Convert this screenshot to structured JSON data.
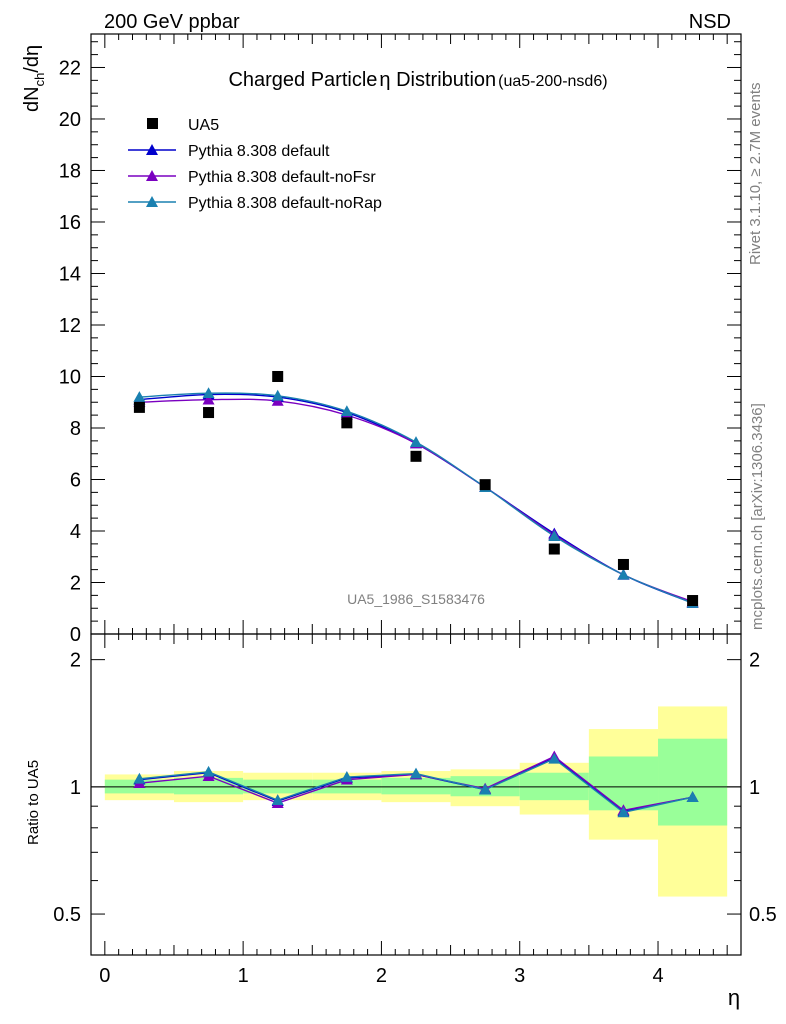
{
  "header": {
    "left": "200 GeV ppbar",
    "right": "NSD"
  },
  "side_text": {
    "rivet": "Rivet 3.1.10, ≥ 2.7M events",
    "mcplots": "mcplots.cern.ch [arXiv:1306.3436]"
  },
  "analysis_tag": "UA5_1986_S1583476",
  "chart_data": [
    {
      "type": "line",
      "panel": "main",
      "title": "Charged Particle",
      "title_symbol": "η",
      "title_rest": " Distribution",
      "title_suffix": "(ua5-200-nsd6)",
      "ylabel_main": "dN",
      "ylabel_sub": "ch",
      "ylabel_tail": "/dη",
      "xlabel": "η",
      "xlim": [
        -0.1,
        4.6
      ],
      "ylim": [
        0,
        23.3
      ],
      "yticks": [
        0,
        2,
        4,
        6,
        8,
        10,
        12,
        14,
        16,
        18,
        20,
        22
      ],
      "ytick_labels": [
        "0",
        "2",
        "4",
        "6",
        "8",
        "10",
        "12",
        "14",
        "16",
        "18",
        "20",
        "22"
      ],
      "legend_position": "top-left",
      "data_series": {
        "name": "UA5",
        "color": "#000000",
        "marker": "square",
        "x": [
          0.25,
          0.75,
          1.25,
          1.75,
          2.25,
          2.75,
          3.25,
          3.75,
          4.25
        ],
        "y": [
          8.8,
          8.6,
          10.0,
          8.2,
          6.9,
          5.8,
          3.3,
          2.7,
          1.3
        ]
      },
      "series": [
        {
          "name": "Pythia 8.308 default",
          "color": "#0000cc",
          "marker": "triangle",
          "x": [
            0.25,
            0.75,
            1.25,
            1.75,
            2.25,
            2.75,
            3.25,
            3.75,
            4.25
          ],
          "y": [
            9.1,
            9.3,
            9.2,
            8.6,
            7.4,
            5.7,
            3.9,
            2.3,
            1.2
          ]
        },
        {
          "name": "Pythia 8.308 default-noFsr",
          "color": "#7a00c0",
          "marker": "triangle",
          "x": [
            0.25,
            0.75,
            1.25,
            1.75,
            2.25,
            2.75,
            3.25,
            3.75,
            4.25
          ],
          "y": [
            9.0,
            9.1,
            9.05,
            8.5,
            7.4,
            5.7,
            3.85,
            2.3,
            1.25
          ]
        },
        {
          "name": "Pythia 8.308 default-noRap",
          "color": "#1a80b0",
          "marker": "triangle",
          "x": [
            0.25,
            0.75,
            1.25,
            1.75,
            2.25,
            2.75,
            3.25,
            3.75,
            4.25
          ],
          "y": [
            9.2,
            9.35,
            9.25,
            8.65,
            7.45,
            5.7,
            3.8,
            2.3,
            1.2
          ]
        }
      ]
    },
    {
      "type": "line",
      "panel": "ratio",
      "ylabel": "Ratio to UA5",
      "xlabel": "η",
      "xlim": [
        -0.1,
        4.6
      ],
      "ylim": [
        0.4,
        2.3
      ],
      "yscale": "log",
      "yticks": [
        0.5,
        1,
        2
      ],
      "ytick_labels": [
        "0.5",
        "1",
        "2"
      ],
      "xticks": [
        0,
        1,
        2,
        3,
        4
      ],
      "xtick_labels": [
        "0",
        "1",
        "2",
        "3",
        "4"
      ],
      "bands": [
        {
          "xlow": 0.0,
          "xhigh": 0.5,
          "yellow": [
            0.93,
            1.07
          ],
          "green": [
            0.965,
            1.04
          ]
        },
        {
          "xlow": 0.5,
          "xhigh": 1.0,
          "yellow": [
            0.92,
            1.09
          ],
          "green": [
            0.96,
            1.05
          ]
        },
        {
          "xlow": 1.0,
          "xhigh": 1.5,
          "yellow": [
            0.93,
            1.08
          ],
          "green": [
            0.965,
            1.04
          ]
        },
        {
          "xlow": 1.5,
          "xhigh": 2.0,
          "yellow": [
            0.93,
            1.08
          ],
          "green": [
            0.965,
            1.04
          ]
        },
        {
          "xlow": 2.0,
          "xhigh": 2.5,
          "yellow": [
            0.92,
            1.09
          ],
          "green": [
            0.96,
            1.05
          ]
        },
        {
          "xlow": 2.5,
          "xhigh": 3.0,
          "yellow": [
            0.9,
            1.1
          ],
          "green": [
            0.95,
            1.06
          ]
        },
        {
          "xlow": 3.0,
          "xhigh": 3.5,
          "yellow": [
            0.86,
            1.14
          ],
          "green": [
            0.93,
            1.08
          ]
        },
        {
          "xlow": 3.5,
          "xhigh": 4.0,
          "yellow": [
            0.75,
            1.37
          ],
          "green": [
            0.88,
            1.18
          ]
        },
        {
          "xlow": 4.0,
          "xhigh": 4.5,
          "yellow": [
            0.55,
            1.55
          ],
          "green": [
            0.81,
            1.3
          ]
        }
      ],
      "series": [
        {
          "name": "Pythia 8.308 default",
          "color": "#0000cc",
          "x": [
            0.25,
            0.75,
            1.25,
            1.75,
            2.25,
            2.75,
            3.25,
            3.75,
            4.25
          ],
          "y": [
            1.04,
            1.08,
            0.925,
            1.05,
            1.07,
            0.985,
            1.175,
            0.875,
            0.945
          ]
        },
        {
          "name": "Pythia 8.308 default-noFsr",
          "color": "#7a00c0",
          "x": [
            0.25,
            0.75,
            1.25,
            1.75,
            2.25,
            2.75,
            3.25,
            3.75,
            4.25
          ],
          "y": [
            1.02,
            1.06,
            0.915,
            1.04,
            1.07,
            0.99,
            1.18,
            0.88,
            0.945
          ]
        },
        {
          "name": "Pythia 8.308 default-noRap",
          "color": "#1a80b0",
          "x": [
            0.25,
            0.75,
            1.25,
            1.75,
            2.25,
            2.75,
            3.25,
            3.75,
            4.25
          ],
          "y": [
            1.045,
            1.085,
            0.93,
            1.055,
            1.075,
            0.985,
            1.165,
            0.87,
            0.945
          ]
        }
      ]
    }
  ]
}
